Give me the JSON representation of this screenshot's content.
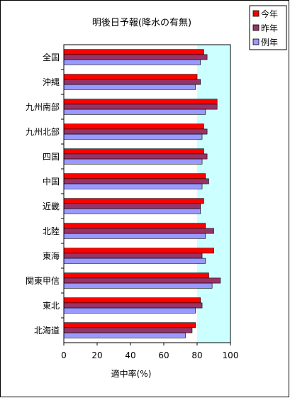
{
  "chart_data": {
    "type": "bar",
    "orientation": "horizontal",
    "title": "明後日予報(降水の有無)",
    "xlabel": "適中率(%)",
    "ylabel": "",
    "xlim": [
      0,
      100
    ],
    "xticks": [
      0,
      20,
      40,
      60,
      80,
      100
    ],
    "grid": false,
    "legend_position": "top-right",
    "categories": [
      "全国",
      "沖縄",
      "九州南部",
      "九州北部",
      "四国",
      "中国",
      "近畿",
      "北陸",
      "東海",
      "関東甲信",
      "東北",
      "北海道"
    ],
    "series": [
      {
        "name": "今年",
        "color": "#ff0000",
        "values": [
          84,
          80,
          92,
          84,
          84,
          85,
          84,
          85,
          90,
          87,
          82,
          79
        ]
      },
      {
        "name": "昨年",
        "color": "#993366",
        "values": [
          86,
          82,
          92,
          86,
          86,
          87,
          82,
          90,
          83,
          94,
          83,
          77
        ]
      },
      {
        "name": "例年",
        "color": "#9999ff",
        "values": [
          82,
          79,
          85,
          83,
          83,
          83,
          82,
          85,
          85,
          89,
          79,
          73
        ]
      }
    ],
    "highlight_band": {
      "from": 80,
      "to": 100,
      "color": "#ccffff"
    },
    "plot_background": "#ffffff"
  }
}
